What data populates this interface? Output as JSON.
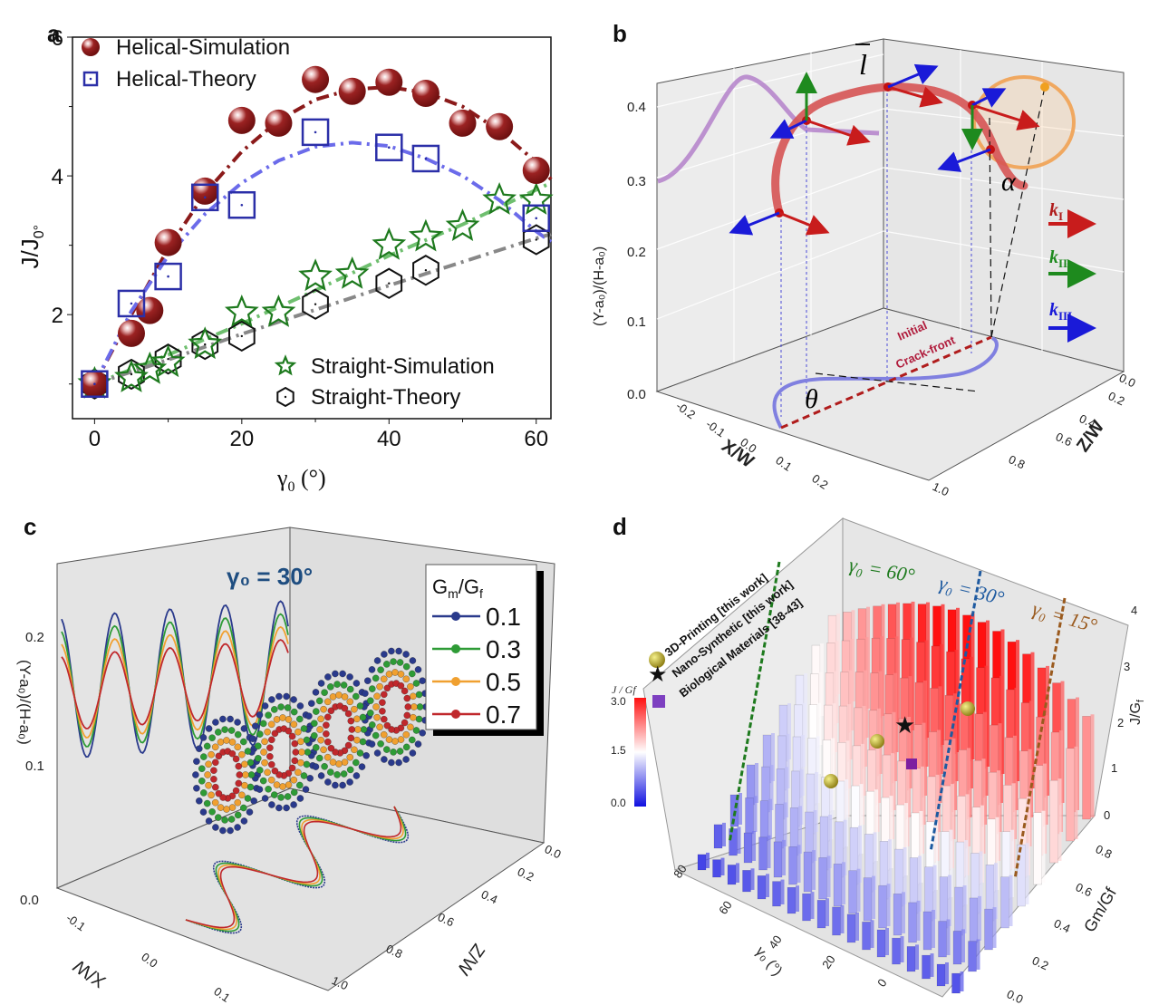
{
  "chart_data": [
    {
      "panel": "a",
      "type": "scatter",
      "title": "",
      "xlabel": "γ0 (°)",
      "ylabel": "J/J0°",
      "xlim": [
        -3,
        62
      ],
      "ylim": [
        0.5,
        6
      ],
      "xticks": [
        0,
        20,
        40,
        60
      ],
      "yticks": [
        2,
        4,
        6
      ],
      "grid": false,
      "legend": [
        {
          "position": "top-left",
          "entries": [
            "Helical-Simulation",
            "Helical-Theory"
          ]
        },
        {
          "position": "bottom-right",
          "entries": [
            "Straight-Simulation",
            "Straight-Theory"
          ]
        }
      ],
      "series": [
        {
          "name": "Helical-Simulation",
          "marker": "sphere",
          "color": "#8b1a1a",
          "x": [
            0,
            5,
            7.5,
            10,
            15,
            20,
            25,
            30,
            35,
            40,
            45,
            50,
            55,
            60
          ],
          "y": [
            1.0,
            1.73,
            2.06,
            3.04,
            3.78,
            4.8,
            4.76,
            5.39,
            5.22,
            5.35,
            5.19,
            4.76,
            4.71,
            4.08
          ]
        },
        {
          "name": "Helical-Theory",
          "marker": "square",
          "color": "#2b2fa8",
          "x": [
            0,
            5,
            10,
            15,
            20,
            30,
            40,
            45,
            60
          ],
          "y": [
            1.0,
            2.16,
            2.55,
            3.69,
            3.58,
            4.63,
            4.41,
            4.25,
            3.39
          ]
        },
        {
          "name": "Straight-Simulation",
          "marker": "star",
          "color": "#1e7a1e",
          "x": [
            0,
            5,
            7.5,
            10,
            15,
            20,
            25,
            30,
            35,
            40,
            45,
            50,
            55,
            60
          ],
          "y": [
            1.0,
            1.09,
            1.21,
            1.31,
            1.57,
            2.03,
            2.03,
            2.55,
            2.58,
            3.0,
            3.12,
            3.27,
            3.65,
            3.65
          ]
        },
        {
          "name": "Straight-Theory",
          "marker": "hexagon",
          "color": "#111111",
          "x": [
            0,
            5,
            10,
            15,
            20,
            30,
            40,
            45,
            60
          ],
          "y": [
            1.0,
            1.14,
            1.36,
            1.57,
            1.69,
            2.15,
            2.45,
            2.64,
            3.08
          ]
        }
      ],
      "fit_lines": [
        {
          "name": "Helical-Simulation fit",
          "style": "dash-dot",
          "color": "#8b1a1a",
          "x": [
            0,
            5,
            10,
            15,
            20,
            25,
            30,
            35,
            40,
            45,
            50,
            55,
            60,
            62
          ],
          "y": [
            1.0,
            2.0,
            2.95,
            3.75,
            4.35,
            4.8,
            5.1,
            5.25,
            5.28,
            5.2,
            5.0,
            4.65,
            4.2,
            3.95
          ]
        },
        {
          "name": "Helical-Theory fit",
          "style": "dash-dot",
          "color": "#6b6bea",
          "x": [
            0,
            5,
            10,
            15,
            20,
            25,
            30,
            35,
            40,
            45,
            50,
            55,
            60,
            62
          ],
          "y": [
            1.0,
            2.05,
            2.85,
            3.45,
            3.9,
            4.22,
            4.42,
            4.48,
            4.43,
            4.25,
            4.0,
            3.65,
            3.2,
            3.05
          ]
        },
        {
          "name": "Straight-Simulation fit",
          "style": "dash-dot",
          "color": "#6fbf6f",
          "x": [
            0,
            10,
            20,
            30,
            40,
            50,
            60,
            62
          ],
          "y": [
            1.0,
            1.42,
            1.87,
            2.35,
            2.85,
            3.3,
            3.8,
            3.9
          ]
        },
        {
          "name": "Straight-Theory fit",
          "style": "dash-dot",
          "color": "#888888",
          "x": [
            0,
            10,
            20,
            30,
            40,
            50,
            60,
            62
          ],
          "y": [
            1.0,
            1.35,
            1.72,
            2.07,
            2.42,
            2.76,
            3.1,
            3.16
          ]
        }
      ]
    },
    {
      "panel": "b",
      "type": "line",
      "title": "",
      "zlabel": "(Y-a0)/(H-a0)",
      "xlabel": "X/W",
      "ylabel": "Z/W",
      "z_ticks": [
        "0.0",
        "0.1",
        "0.2",
        "0.3",
        "0.4"
      ],
      "x_ticks": [
        "-0.2",
        "-0.1",
        "0.0",
        "0.1",
        "0.2"
      ],
      "y_ticks": [
        "0.0",
        "0.2",
        "0.4",
        "0.6",
        "0.8",
        "1.0"
      ],
      "annotations": [
        "l̄",
        "α",
        "θ",
        "Initial",
        "Crack-front"
      ],
      "legend": [
        {
          "label": "kI",
          "color": "#b01c1c"
        },
        {
          "label": "kII",
          "color": "#1e8a1e"
        },
        {
          "label": "kIII",
          "color": "#1a1ad8"
        }
      ]
    },
    {
      "panel": "c",
      "type": "line",
      "title": "γ0 = 30°",
      "zlabel": "(Y-a0)/(H-a0)",
      "xlabel": "X/W",
      "ylabel": "Z/W",
      "z_ticks": [
        "0.0",
        "0.1",
        "0.2"
      ],
      "x_ticks": [
        "-0.1",
        "0.0",
        "0.1"
      ],
      "y_ticks": [
        "0.0",
        "0.2",
        "0.4",
        "0.6",
        "0.8",
        "1.0"
      ],
      "legend_title": "Gm/Gf",
      "series": [
        {
          "name": "0.1",
          "color": "#2a3a8c",
          "peak_y": 0.21,
          "trough_y": 0.1
        },
        {
          "name": "0.3",
          "color": "#2e9b36",
          "peak_y": 0.2,
          "trough_y": 0.108
        },
        {
          "name": "0.5",
          "color": "#f0a030",
          "peak_y": 0.19,
          "trough_y": 0.115
        },
        {
          "name": "0.7",
          "color": "#c0282c",
          "peak_y": 0.18,
          "trough_y": 0.122
        }
      ]
    },
    {
      "panel": "d",
      "type": "bar",
      "title": "",
      "xlabel": "γ0 (°)",
      "ylabel": "Gm/Gf",
      "zlabel": "J/Gf",
      "x_ticks": [
        "0",
        "20",
        "40",
        "60",
        "80"
      ],
      "y_ticks": [
        "0.0",
        "0.2",
        "0.4",
        "0.6",
        "0.8"
      ],
      "z_ticks": [
        "0",
        "1",
        "2",
        "3",
        "4"
      ],
      "colorbar": {
        "label": "J / Gf",
        "ticks": [
          "3.0",
          "1.5",
          "0.0"
        ],
        "range": [
          0,
          3
        ],
        "colors": [
          "#1010e0",
          "#ffffff",
          "#ff1010"
        ]
      },
      "annotations": [
        "γ0 = 60°",
        "γ0 = 30°",
        "γ0 = 15°"
      ],
      "legend": [
        {
          "label": "3D-Printing [this work]",
          "marker": "gold-sphere"
        },
        {
          "label": "Nano-Synthetic [this work]",
          "marker": "black-star"
        },
        {
          "label": "Biological Materials [38-43]",
          "marker": "purple-cube"
        }
      ]
    }
  ],
  "panels": {
    "a": {
      "letter": "a"
    },
    "b": {
      "letter": "b"
    },
    "c": {
      "letter": "c"
    },
    "d": {
      "letter": "d"
    }
  },
  "labels": {
    "a_ylabel_main": "J/J",
    "a_ylabel_sub": "0°",
    "a_xlabel_main": "γ",
    "a_xlabel_sub": "0",
    "a_xlabel_unit": " (°)",
    "b_lbar": "l",
    "b_alpha": "α",
    "b_theta": "θ",
    "b_initial": "Initial",
    "b_crackfront": "Crack-front",
    "b_ylabel": "(Y-a₀)/(H-a₀)",
    "b_xw": "X/W",
    "b_zw": "Z/W",
    "c_title": "γ₀ = 30°",
    "c_legend_title_main": "G",
    "c_legend_title_m": "m",
    "c_legend_title_mid": "/G",
    "c_legend_title_f": "f",
    "c_ylabel": "(Y-a₀)/(H-a₀)",
    "c_xw": "X/W",
    "c_zw": "Z/W",
    "d_ann60": "γ₀ = 60°",
    "d_ann30": "γ₀ = 30°",
    "d_ann15": "γ₀ = 15°",
    "d_zlabel": "J/G",
    "d_zlabel_sub": "f",
    "d_ylabel": "Gm/Gf",
    "d_xlabel": "γ₀ (°)",
    "d_cb_label": "J / Gf"
  }
}
